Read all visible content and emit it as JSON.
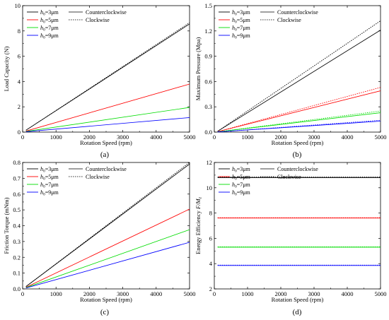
{
  "chart_data": [
    {
      "type": "line",
      "caption": "(a)",
      "xlabel": "Rotation Speed (rpm)",
      "ylabel": "Load Capacity (N)",
      "xlim": [
        0,
        5000
      ],
      "ylim": [
        0,
        10
      ],
      "xticks": [
        0,
        1000,
        2000,
        3000,
        4000,
        5000
      ],
      "yticks": [
        0,
        2,
        4,
        6,
        8,
        10
      ],
      "grid": false,
      "legend": {
        "placement": "top-left",
        "series_entries": [
          {
            "h": "h",
            "sub": "0",
            "rest": "=3μm",
            "color": "#000000"
          },
          {
            "h": "h",
            "sub": "0",
            "rest": "=5μm",
            "color": "#ff0000"
          },
          {
            "h": "h",
            "sub": "0",
            "rest": "=7μm",
            "color": "#00dd00"
          },
          {
            "h": "h",
            "sub": "0",
            "rest": "=9μm",
            "color": "#0000ff"
          }
        ],
        "style_entries": [
          {
            "label": "Counterclockwise",
            "dash": "solid"
          },
          {
            "label": "Clockwise",
            "dash": "dotted"
          }
        ]
      },
      "series": [
        {
          "color": "#000000",
          "dash": "solid",
          "x": [
            100,
            5000
          ],
          "y": [
            0.15,
            8.55
          ]
        },
        {
          "color": "#000000",
          "dash": "dotted",
          "x": [
            100,
            5000
          ],
          "y": [
            0.15,
            8.65
          ]
        },
        {
          "color": "#ff0000",
          "dash": "solid",
          "x": [
            100,
            5000
          ],
          "y": [
            0.08,
            3.8
          ]
        },
        {
          "color": "#00dd00",
          "dash": "solid",
          "x": [
            100,
            5000
          ],
          "y": [
            0.05,
            1.95
          ]
        },
        {
          "color": "#0000ff",
          "dash": "solid",
          "x": [
            100,
            5000
          ],
          "y": [
            0.03,
            1.15
          ]
        }
      ]
    },
    {
      "type": "line",
      "caption": "(b)",
      "xlabel": "Rotation Speed (rpm)",
      "ylabel": "Maximum Pressure (Mpa)",
      "xlim": [
        0,
        5000
      ],
      "ylim": [
        0,
        1.5
      ],
      "xticks": [
        0,
        1000,
        2000,
        3000,
        4000,
        5000
      ],
      "yticks": [
        0,
        0.3,
        0.6,
        0.9,
        1.2,
        1.5
      ],
      "grid": false,
      "legend": {
        "placement": "top-left",
        "series_entries": [
          {
            "h": "h",
            "sub": "0",
            "rest": "=3μm",
            "color": "#000000"
          },
          {
            "h": "h",
            "sub": "0",
            "rest": "=5μm",
            "color": "#ff0000"
          },
          {
            "h": "h",
            "sub": "0",
            "rest": "=7μm",
            "color": "#00dd00"
          },
          {
            "h": "h",
            "sub": "0",
            "rest": "=9μm",
            "color": "#0000ff"
          }
        ],
        "style_entries": [
          {
            "label": "Counterclockwise",
            "dash": "solid"
          },
          {
            "label": "Clockwise",
            "dash": "dotted"
          }
        ]
      },
      "series": [
        {
          "color": "#000000",
          "dash": "solid",
          "x": [
            100,
            5000
          ],
          "y": [
            0.01,
            1.21
          ]
        },
        {
          "color": "#000000",
          "dash": "dotted",
          "x": [
            100,
            5000
          ],
          "y": [
            0.01,
            1.32
          ]
        },
        {
          "color": "#ff0000",
          "dash": "solid",
          "x": [
            100,
            5000
          ],
          "y": [
            0.005,
            0.49
          ]
        },
        {
          "color": "#ff0000",
          "dash": "dotted",
          "x": [
            100,
            5000
          ],
          "y": [
            0.005,
            0.53
          ]
        },
        {
          "color": "#00dd00",
          "dash": "solid",
          "x": [
            100,
            5000
          ],
          "y": [
            0.003,
            0.23
          ]
        },
        {
          "color": "#00dd00",
          "dash": "dotted",
          "x": [
            100,
            5000
          ],
          "y": [
            0.003,
            0.25
          ]
        },
        {
          "color": "#0000ff",
          "dash": "solid",
          "x": [
            100,
            5000
          ],
          "y": [
            0.002,
            0.13
          ]
        },
        {
          "color": "#0000ff",
          "dash": "dotted",
          "x": [
            100,
            5000
          ],
          "y": [
            0.002,
            0.14
          ]
        }
      ]
    },
    {
      "type": "line",
      "caption": "(c)",
      "xlabel": "Rotation Speed (rpm)",
      "ylabel": "Friction Torque (mNm)",
      "xlim": [
        0,
        5000
      ],
      "ylim": [
        0,
        0.8
      ],
      "xticks": [
        0,
        1000,
        2000,
        3000,
        4000,
        5000
      ],
      "yticks": [
        0,
        0.1,
        0.2,
        0.3,
        0.4,
        0.5,
        0.6,
        0.7,
        0.8
      ],
      "grid": false,
      "legend": {
        "placement": "top-left",
        "series_entries": [
          {
            "h": "h",
            "sub": "0",
            "rest": "=3μm",
            "color": "#000000"
          },
          {
            "h": "h",
            "sub": "0",
            "rest": "=5μm",
            "color": "#ff0000"
          },
          {
            "h": "h",
            "sub": "0",
            "rest": "=7μm",
            "color": "#00dd00"
          },
          {
            "h": "h",
            "sub": "0",
            "rest": "=9μm",
            "color": "#0000ff"
          }
        ],
        "style_entries": [
          {
            "label": "Counterclockwise",
            "dash": "solid"
          },
          {
            "label": "Clockwise",
            "dash": "dotted"
          }
        ]
      },
      "series": [
        {
          "color": "#000000",
          "dash": "solid",
          "x": [
            100,
            5000
          ],
          "y": [
            0.015,
            0.79
          ]
        },
        {
          "color": "#000000",
          "dash": "dotted",
          "x": [
            100,
            5000
          ],
          "y": [
            0.015,
            0.8
          ]
        },
        {
          "color": "#ff0000",
          "dash": "solid",
          "x": [
            100,
            5000
          ],
          "y": [
            0.01,
            0.505
          ]
        },
        {
          "color": "#00dd00",
          "dash": "solid",
          "x": [
            100,
            5000
          ],
          "y": [
            0.008,
            0.375
          ]
        },
        {
          "color": "#0000ff",
          "dash": "solid",
          "x": [
            100,
            5000
          ],
          "y": [
            0.006,
            0.295
          ]
        }
      ]
    },
    {
      "type": "line",
      "caption": "(d)",
      "xlabel": "Rotation Speed (rpm)",
      "ylabel_main": "Energy Efficiency ",
      "ylabel_italic": "F/M",
      "ylabel_sub": "z",
      "xlim": [
        0,
        5000
      ],
      "ylim": [
        2,
        12
      ],
      "xticks": [
        0,
        1000,
        2000,
        3000,
        4000,
        5000
      ],
      "yticks": [
        2,
        4,
        6,
        8,
        10,
        12
      ],
      "grid": false,
      "legend": {
        "placement": "top-left",
        "series_entries": [
          {
            "h": "h",
            "sub": "0",
            "rest": "=3μm",
            "color": "#000000"
          },
          {
            "h": "h",
            "sub": "0",
            "rest": "=5μm",
            "color": "#ff0000"
          },
          {
            "h": "h",
            "sub": "0",
            "rest": "=7μm",
            "color": "#00dd00"
          },
          {
            "h": "h",
            "sub": "0",
            "rest": "=9μm",
            "color": "#0000ff"
          }
        ],
        "style_entries": [
          {
            "label": "Counterclockwise",
            "dash": "solid"
          },
          {
            "label": "Clockwise",
            "dash": "dotted"
          }
        ]
      },
      "series": [
        {
          "color": "#000000",
          "dash": "solid",
          "x": [
            100,
            5000
          ],
          "y": [
            10.8,
            10.8
          ]
        },
        {
          "color": "#000000",
          "dash": "dotted",
          "x": [
            100,
            5000
          ],
          "y": [
            10.85,
            10.85
          ]
        },
        {
          "color": "#ff0000",
          "dash": "solid",
          "x": [
            100,
            5000
          ],
          "y": [
            7.6,
            7.6
          ]
        },
        {
          "color": "#ff0000",
          "dash": "dotted",
          "x": [
            100,
            5000
          ],
          "y": [
            7.63,
            7.63
          ]
        },
        {
          "color": "#00dd00",
          "dash": "solid",
          "x": [
            100,
            5000
          ],
          "y": [
            5.3,
            5.3
          ]
        },
        {
          "color": "#00dd00",
          "dash": "dotted",
          "x": [
            100,
            5000
          ],
          "y": [
            5.33,
            5.33
          ]
        },
        {
          "color": "#0000ff",
          "dash": "solid",
          "x": [
            100,
            5000
          ],
          "y": [
            3.85,
            3.85
          ]
        },
        {
          "color": "#0000ff",
          "dash": "dotted",
          "x": [
            100,
            5000
          ],
          "y": [
            3.88,
            3.88
          ]
        }
      ]
    }
  ]
}
